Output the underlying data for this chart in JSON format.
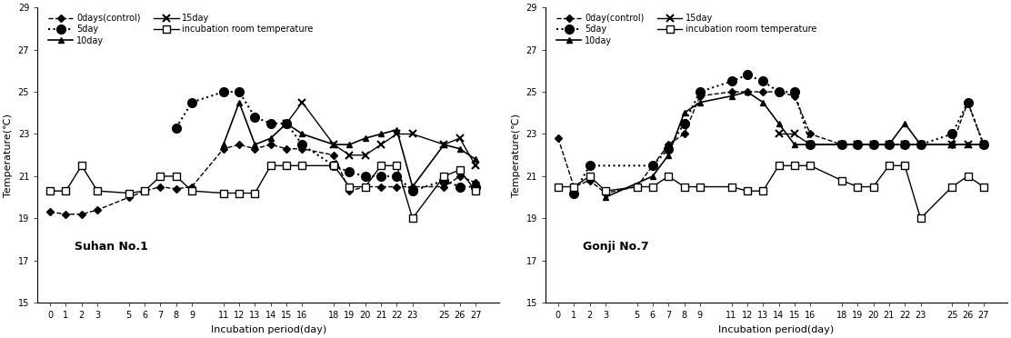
{
  "x_ticks": [
    0,
    1,
    2,
    3,
    5,
    6,
    7,
    8,
    9,
    11,
    12,
    13,
    14,
    15,
    16,
    18,
    19,
    20,
    21,
    22,
    23,
    25,
    26,
    27
  ],
  "chart1": {
    "title": "Suhan No.1",
    "control": [
      19.3,
      19.2,
      19.2,
      19.4,
      20.0,
      20.3,
      20.5,
      20.4,
      20.5,
      22.3,
      22.5,
      22.3,
      22.5,
      22.3,
      22.3,
      22.0,
      20.3,
      20.5,
      20.5,
      20.5,
      20.5,
      20.5,
      21.0,
      20.7
    ],
    "day5": [
      null,
      null,
      null,
      null,
      null,
      null,
      null,
      23.3,
      24.5,
      25.0,
      25.0,
      23.8,
      23.5,
      23.5,
      22.5,
      21.5,
      21.2,
      21.0,
      21.0,
      21.0,
      20.3,
      20.8,
      20.5,
      20.5
    ],
    "day10": [
      null,
      null,
      null,
      null,
      null,
      null,
      null,
      null,
      null,
      22.5,
      24.5,
      22.5,
      22.8,
      23.5,
      23.0,
      22.5,
      22.5,
      22.8,
      23.0,
      23.2,
      20.5,
      22.5,
      22.3,
      21.8
    ],
    "day15": [
      null,
      null,
      null,
      null,
      null,
      null,
      null,
      null,
      null,
      null,
      null,
      null,
      null,
      23.5,
      24.5,
      22.5,
      22.0,
      22.0,
      22.5,
      23.0,
      23.0,
      22.5,
      22.8,
      21.5
    ],
    "room": [
      20.3,
      20.3,
      21.5,
      20.3,
      20.2,
      20.3,
      21.0,
      21.0,
      20.3,
      20.2,
      20.2,
      20.2,
      21.5,
      21.5,
      21.5,
      21.5,
      20.5,
      20.5,
      21.5,
      21.5,
      19.0,
      21.0,
      21.3,
      20.3
    ]
  },
  "chart2": {
    "title": "Gonji No.7",
    "control": [
      22.8,
      20.5,
      20.8,
      20.2,
      20.5,
      21.5,
      22.5,
      23.0,
      24.8,
      25.0,
      25.0,
      25.0,
      25.0,
      24.8,
      23.0,
      22.5,
      22.5,
      22.5,
      22.5,
      22.5,
      22.5,
      22.5,
      24.5,
      22.5
    ],
    "day5": [
      null,
      20.2,
      21.5,
      null,
      null,
      21.5,
      22.3,
      23.5,
      25.0,
      25.5,
      25.8,
      25.5,
      25.0,
      25.0,
      22.5,
      22.5,
      22.5,
      22.5,
      22.5,
      22.5,
      22.5,
      23.0,
      24.5,
      22.5
    ],
    "day10": [
      null,
      null,
      null,
      20.0,
      null,
      21.0,
      22.0,
      24.0,
      24.5,
      24.8,
      25.0,
      24.5,
      23.5,
      22.5,
      22.5,
      22.5,
      22.5,
      22.5,
      22.5,
      23.5,
      22.5,
      22.5,
      22.5,
      22.5
    ],
    "day15": [
      null,
      null,
      null,
      null,
      null,
      null,
      null,
      null,
      null,
      null,
      null,
      null,
      23.0,
      23.0,
      22.5,
      22.5,
      22.5,
      22.5,
      22.5,
      22.5,
      22.5,
      22.5,
      22.5,
      22.5
    ],
    "room": [
      20.5,
      20.5,
      21.0,
      20.3,
      20.5,
      20.5,
      21.0,
      20.5,
      20.5,
      20.5,
      20.3,
      20.3,
      21.5,
      21.5,
      21.5,
      20.8,
      20.5,
      20.5,
      21.5,
      21.5,
      19.0,
      20.5,
      21.0,
      20.5
    ]
  },
  "ylabel": "Temperature(℃)",
  "xlabel": "Incubation period(day)",
  "ylim": [
    15,
    29
  ],
  "yticks": [
    15,
    17,
    19,
    21,
    23,
    25,
    27,
    29
  ],
  "legend_labels_col1": [
    "0days(control)",
    "10day",
    "incubation room temperature"
  ],
  "legend_labels_col2": [
    "5day",
    "15day"
  ]
}
